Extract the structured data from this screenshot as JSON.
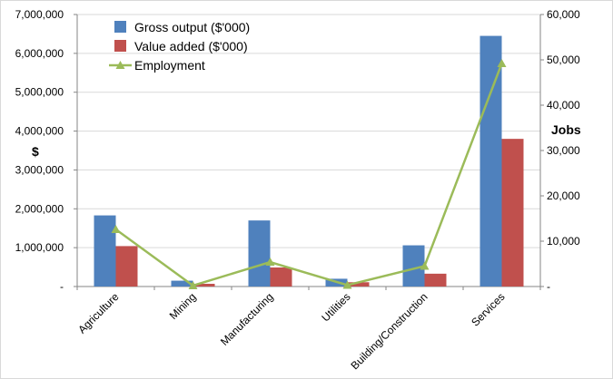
{
  "chart_data": {
    "type": "bar",
    "categories": [
      "Agriculture",
      "Mining",
      "Manufacturing",
      "Utilities",
      "Building/Construction",
      "Services"
    ],
    "series": [
      {
        "name": "Gross output ($'000)",
        "axis": "left",
        "kind": "bar",
        "color": "#4f81bd",
        "values": [
          1830000,
          150000,
          1700000,
          200000,
          1060000,
          6450000
        ]
      },
      {
        "name": "Value added ($'000)",
        "axis": "left",
        "kind": "bar",
        "color": "#c0504d",
        "values": [
          1040000,
          70000,
          490000,
          110000,
          330000,
          3800000
        ]
      },
      {
        "name": "Employment",
        "axis": "right",
        "kind": "line",
        "marker": "triangle",
        "color": "#9bbb59",
        "values": [
          12600,
          200,
          5400,
          300,
          4500,
          49200
        ]
      }
    ],
    "y_left": {
      "label": "$",
      "ylim": [
        0,
        7000000
      ],
      "ticks": [
        0,
        1000000,
        2000000,
        3000000,
        4000000,
        5000000,
        6000000,
        7000000
      ],
      "tick_labels": [
        "-",
        "1,000,000",
        "2,000,000",
        "3,000,000",
        "4,000,000",
        "5,000,000",
        "6,000,000",
        "7,000,000"
      ]
    },
    "y_right": {
      "label": "Jobs",
      "ylim": [
        0,
        60000
      ],
      "ticks": [
        0,
        10000,
        20000,
        30000,
        40000,
        50000,
        60000
      ],
      "tick_labels": [
        "-",
        "10,000",
        "20,000",
        "30,000",
        "40,000",
        "50,000",
        "60,000"
      ]
    },
    "grid": true,
    "legend": "top-left"
  }
}
